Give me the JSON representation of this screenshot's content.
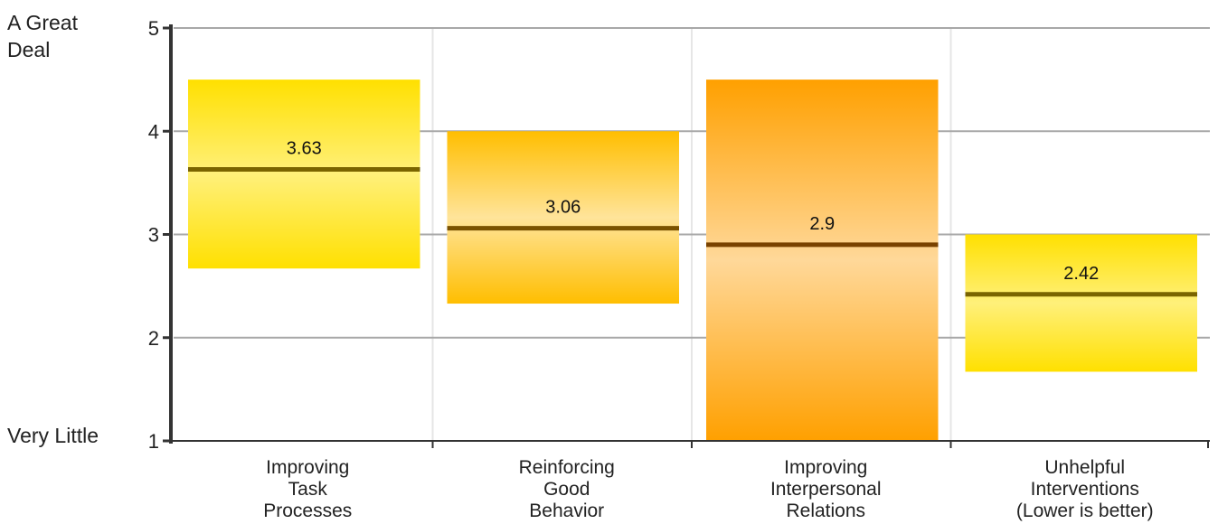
{
  "chart_data": {
    "type": "bar",
    "title": "",
    "xlabel": "",
    "ylabel": "",
    "ylim": [
      1,
      5
    ],
    "yticks": [
      1,
      2,
      3,
      4,
      5
    ],
    "y_top_label": [
      "A Great",
      "Deal"
    ],
    "y_bottom_label": "Very Little",
    "grid": true,
    "categories": [
      [
        "Improving",
        "Task",
        "Processes"
      ],
      [
        "Reinforcing",
        "Good",
        "Behavior"
      ],
      [
        "Improving",
        "Interpersonal",
        "Relations"
      ],
      [
        "Unhelpful",
        "Interventions",
        "(Lower is better)"
      ]
    ],
    "bars": [
      {
        "low": 2.67,
        "high": 4.5,
        "mean": 3.63,
        "label": "3.63",
        "color": "#ffe000",
        "color_light": "#fff07a",
        "line_color": "#7a6400"
      },
      {
        "low": 2.33,
        "high": 4.0,
        "mean": 3.06,
        "label": "3.06",
        "color": "#ffbe00",
        "color_light": "#ffe49a",
        "line_color": "#7a5200"
      },
      {
        "low": 1.0,
        "high": 4.5,
        "mean": 2.9,
        "label": "2.9",
        "color": "#ffa000",
        "color_light": "#ffd899",
        "line_color": "#7a4200"
      },
      {
        "low": 1.67,
        "high": 3.0,
        "mean": 2.42,
        "label": "2.42",
        "color": "#ffe000",
        "color_light": "#fff07a",
        "line_color": "#7a6400"
      }
    ]
  }
}
